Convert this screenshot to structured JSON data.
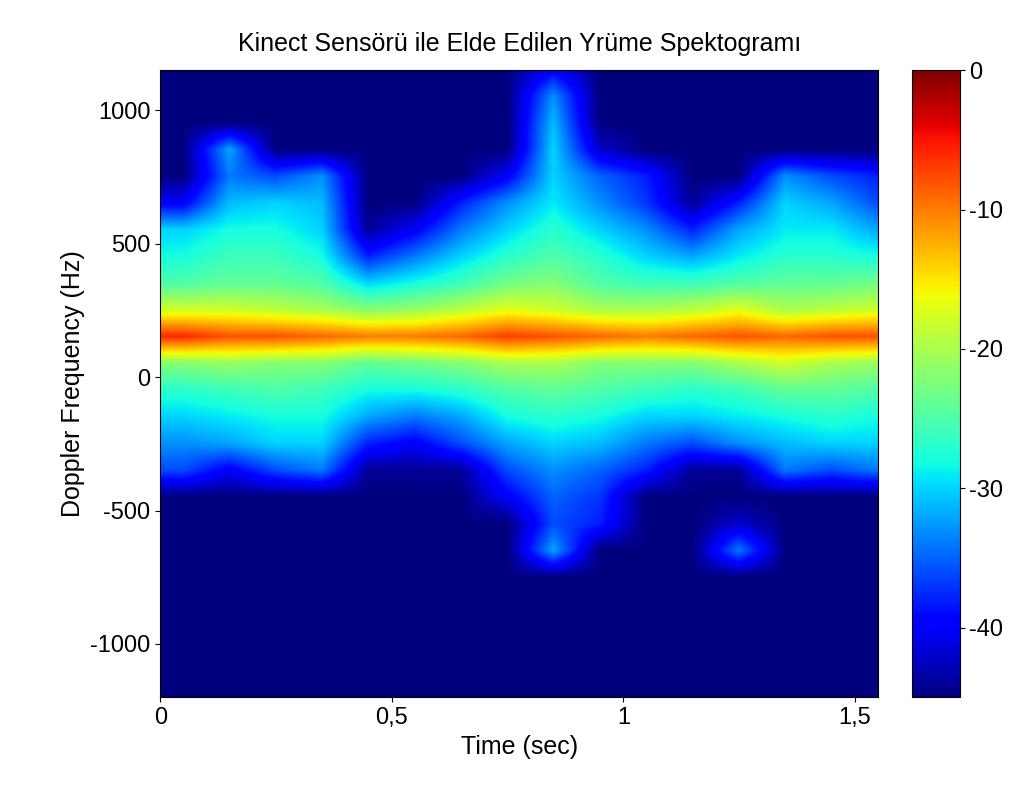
{
  "chart_data": {
    "type": "heatmap",
    "title": "Kinect Sensörü ile Elde Edilen Yrüme Spektogramı",
    "x_label": "Time (sec)",
    "y_label": "Doppler Frequency (Hz)",
    "xlim": [
      0,
      1.55
    ],
    "ylim": [
      -1200,
      1150
    ],
    "xticks": [
      0,
      {
        "value": 0.5,
        "label": "0,5"
      },
      1,
      {
        "value": 1.5,
        "label": "1,5"
      }
    ],
    "yticks": [
      -1000,
      -500,
      0,
      500,
      1000
    ],
    "x_edges": [
      0,
      0.1,
      0.2,
      0.3,
      0.4,
      0.5,
      0.6,
      0.7,
      0.8,
      0.9,
      1.0,
      1.1,
      1.2,
      1.3,
      1.4,
      1.5,
      1.6
    ],
    "y_edges": [
      -1200,
      -1100,
      -1000,
      -900,
      -800,
      -700,
      -600,
      -500,
      -400,
      -300,
      -200,
      -100,
      0,
      100,
      200,
      300,
      400,
      500,
      600,
      700,
      800,
      900,
      1000,
      1100,
      1200
    ],
    "cells": [
      [
        -45,
        -45,
        -45,
        -45,
        -45,
        -45,
        -45,
        -45,
        -45,
        -45,
        -45,
        -45,
        -45,
        -45,
        -45,
        -45
      ],
      [
        -45,
        -45,
        -45,
        -45,
        -45,
        -45,
        -45,
        -45,
        -45,
        -45,
        -45,
        -45,
        -45,
        -45,
        -45,
        -45
      ],
      [
        -45,
        -45,
        -45,
        -45,
        -45,
        -45,
        -45,
        -45,
        -45,
        -45,
        -45,
        -45,
        -45,
        -45,
        -45,
        -45
      ],
      [
        -45,
        -45,
        -45,
        -45,
        -45,
        -45,
        -45,
        -45,
        -45,
        -45,
        -45,
        -45,
        -45,
        -45,
        -45,
        -45
      ],
      [
        -45,
        -45,
        -45,
        -45,
        -45,
        -45,
        -45,
        -45,
        -45,
        -45,
        -45,
        -45,
        -45,
        -45,
        -45,
        -45
      ],
      [
        -45,
        -45,
        -45,
        -45,
        -45,
        -45,
        -45,
        -45,
        -32,
        -45,
        -45,
        -45,
        -34,
        -45,
        -45,
        -45
      ],
      [
        -45,
        -45,
        -45,
        -45,
        -45,
        -45,
        -45,
        -45,
        -36,
        -38,
        -45,
        -45,
        -42,
        -45,
        -45,
        -45
      ],
      [
        -45,
        -45,
        -45,
        -45,
        -45,
        -45,
        -45,
        -40,
        -35,
        -37,
        -45,
        -45,
        -45,
        -45,
        -45,
        -45
      ],
      [
        -36,
        -40,
        -36,
        -34,
        -44,
        -44,
        -44,
        -36,
        -33,
        -35,
        -38,
        -44,
        -44,
        -34,
        -36,
        -34
      ],
      [
        -33,
        -32,
        -30,
        -30,
        -38,
        -40,
        -36,
        -32,
        -30,
        -31,
        -34,
        -36,
        -33,
        -31,
        -30,
        -30
      ],
      [
        -30,
        -29,
        -28,
        -28,
        -32,
        -34,
        -32,
        -28,
        -27,
        -28,
        -30,
        -30,
        -29,
        -28,
        -27,
        -28
      ],
      [
        -27,
        -26,
        -25,
        -26,
        -28,
        -28,
        -27,
        -25,
        -24,
        -25,
        -26,
        -27,
        -26,
        -24,
        -24,
        -25
      ],
      [
        -22,
        -21,
        -22,
        -22,
        -24,
        -23,
        -22,
        -20,
        -20,
        -22,
        -22,
        -22,
        -20,
        -18,
        -20,
        -21
      ],
      [
        -6,
        -8,
        -8,
        -9,
        -10,
        -10,
        -9,
        -7,
        -8,
        -9,
        -10,
        -9,
        -8,
        -9,
        -8,
        -8
      ],
      [
        -18,
        -18,
        -19,
        -20,
        -22,
        -21,
        -19,
        -17,
        -18,
        -20,
        -20,
        -19,
        -17,
        -20,
        -19,
        -18
      ],
      [
        -25,
        -24,
        -24,
        -25,
        -30,
        -28,
        -26,
        -23,
        -22,
        -25,
        -26,
        -26,
        -25,
        -24,
        -24,
        -23
      ],
      [
        -28,
        -26,
        -26,
        -28,
        -38,
        -34,
        -30,
        -27,
        -25,
        -27,
        -30,
        -32,
        -29,
        -27,
        -27,
        -28
      ],
      [
        -30,
        -28,
        -28,
        -30,
        -44,
        -40,
        -34,
        -30,
        -27,
        -30,
        -33,
        -38,
        -32,
        -29,
        -29,
        -32
      ],
      [
        -40,
        -31,
        -30,
        -31,
        -45,
        -45,
        -38,
        -33,
        -29,
        -33,
        -37,
        -44,
        -38,
        -30,
        -32,
        -36
      ],
      [
        -45,
        -34,
        -36,
        -33,
        -45,
        -45,
        -45,
        -40,
        -30,
        -35,
        -38,
        -45,
        -45,
        -33,
        -36,
        -38
      ],
      [
        -45,
        -32,
        -45,
        -45,
        -45,
        -45,
        -45,
        -45,
        -30,
        -42,
        -45,
        -45,
        -45,
        -45,
        -45,
        -45
      ],
      [
        -45,
        -45,
        -45,
        -45,
        -45,
        -45,
        -45,
        -45,
        -31,
        -45,
        -45,
        -45,
        -45,
        -45,
        -45,
        -45
      ],
      [
        -45,
        -45,
        -45,
        -45,
        -45,
        -45,
        -45,
        -45,
        -33,
        -45,
        -45,
        -45,
        -45,
        -45,
        -45,
        -45
      ],
      [
        -45,
        -45,
        -45,
        -45,
        -45,
        -45,
        -45,
        -45,
        -40,
        -45,
        -45,
        -45,
        -45,
        -45,
        -45,
        -45
      ]
    ],
    "colorbar": {
      "range": [
        -45,
        0
      ],
      "ticks": [
        0,
        -10,
        -20,
        -30,
        -40
      ]
    }
  }
}
